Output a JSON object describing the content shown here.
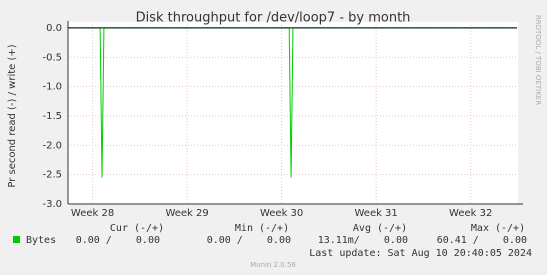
{
  "chart_data": {
    "type": "line",
    "title": "Disk throughput for /dev/loop7 - by month",
    "y_label": "Pr second read (-) / write (+)",
    "side_label": "RRDTOOL / TOBI OETIKER",
    "xlim": [
      27.74,
      32.49
    ],
    "xticks": [
      {
        "value": 28,
        "label": "Week 28"
      },
      {
        "value": 29,
        "label": "Week 29"
      },
      {
        "value": 30,
        "label": "Week 30"
      },
      {
        "value": 31,
        "label": "Week 31"
      },
      {
        "value": 32,
        "label": "Week 32"
      }
    ],
    "ylim": [
      -3.0,
      0.05
    ],
    "yticks": [
      {
        "value": 0,
        "label": "0.0"
      },
      -0.5,
      {
        "value": -1,
        "label": "-1.0"
      },
      -1.5,
      {
        "value": -2,
        "label": "-2.0"
      },
      -2.5,
      {
        "value": -3,
        "label": "-3.0"
      }
    ],
    "grid": true,
    "x": [
      27.74,
      28.08,
      28.1,
      28.12,
      30.08,
      30.1,
      30.12,
      32.49
    ],
    "series": [
      {
        "name": "Bytes",
        "color": "#00cc00",
        "values": [
          0,
          0,
          -2.55,
          0,
          0,
          -2.55,
          0,
          0
        ]
      }
    ],
    "stats_headers": [
      "Cur (-/+)",
      "Min (-/+)",
      "Avg (-/+)",
      "Max (-/+)"
    ],
    "stats": [
      "0.00 /    0.00",
      "0.00 /    0.00",
      "13.11m/    0.00",
      "60.41 /    0.00"
    ],
    "last_update": "Last update: Sat Aug 10 20:40:05 2024",
    "footer": "Munin 2.0.56"
  }
}
